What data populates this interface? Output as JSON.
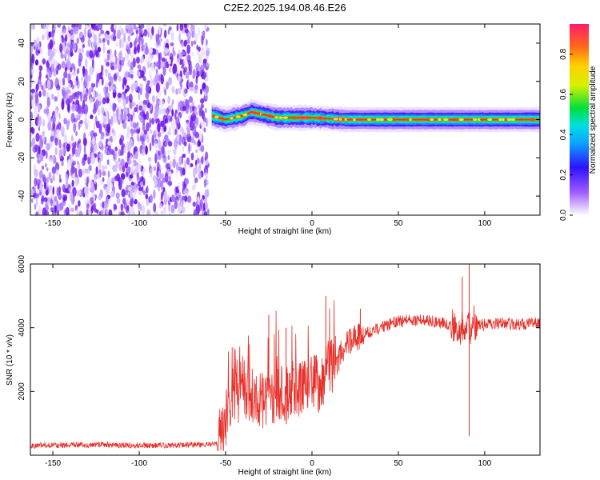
{
  "figure": {
    "title": "C2E2.2025.194.08.46.E26"
  },
  "colors": {
    "noise": "#7a1ff0",
    "trace": "#e8302a",
    "spectral_ridge": "#ff2a2a",
    "axes": "#000000"
  },
  "chart_data": [
    {
      "type": "heatmap",
      "title": "C2E2.2025.194.08.46.E26",
      "xlabel": "Height of straight line (km)",
      "ylabel": "Frequency (Hz)",
      "xlim": [
        -163,
        132
      ],
      "ylim": [
        -50,
        50
      ],
      "xticks": [
        -150,
        -100,
        -50,
        0,
        50,
        100
      ],
      "yticks": [
        -40,
        -20,
        0,
        20,
        40
      ],
      "colorbar": {
        "label": "Normalized spectral amplitude",
        "range": [
          0,
          0.95
        ],
        "ticks": [
          "0.0",
          "0.2",
          "0.4",
          "0.6",
          "0.8"
        ],
        "colormap": "rainbow (white-purple-blue-cyan-green-yellow-orange-red-magenta)"
      },
      "regions": [
        {
          "x_range": [
            -163,
            -60
          ],
          "description_level": "broadband noise, amplitude ~0.05-0.2"
        },
        {
          "x_range": [
            -60,
            132
          ],
          "center_frequency_hz": 0,
          "peak_amplitude": 0.95
        }
      ],
      "ridge_center": [
        {
          "x": -58,
          "y": 2
        },
        {
          "x": -50,
          "y": 0
        },
        {
          "x": -40,
          "y": 2
        },
        {
          "x": -35,
          "y": 4
        },
        {
          "x": -30,
          "y": 3
        },
        {
          "x": -20,
          "y": 1
        },
        {
          "x": 0,
          "y": 1
        },
        {
          "x": 20,
          "y": 0
        },
        {
          "x": 60,
          "y": 0
        },
        {
          "x": 90,
          "y": 0
        },
        {
          "x": 132,
          "y": 0
        }
      ],
      "grid": false
    },
    {
      "type": "line",
      "xlabel": "Height of straight line (km)",
      "ylabel": "SNR (10 * v/v)",
      "xlim": [
        -163,
        132
      ],
      "ylim": [
        0,
        6000
      ],
      "xticks": [
        -150,
        -100,
        -50,
        0,
        50,
        100
      ],
      "yticks": [
        2000,
        4000,
        6000
      ],
      "series": [
        {
          "x": [
            -163,
            -140,
            -120,
            -100,
            -80,
            -60,
            -55,
            -52,
            -50,
            -45,
            -40,
            -35,
            -30,
            -25,
            -20,
            -15,
            -10,
            -5,
            0,
            5,
            10,
            15,
            20,
            25,
            30,
            40,
            50,
            60,
            70,
            80,
            88,
            90,
            92,
            94,
            96,
            100,
            110,
            120,
            132
          ],
          "values": [
            300,
            320,
            330,
            300,
            310,
            340,
            350,
            700,
            1200,
            1800,
            2100,
            1900,
            1700,
            1800,
            2000,
            1900,
            2100,
            2200,
            2400,
            2100,
            2800,
            3000,
            3500,
            3700,
            3800,
            4000,
            4200,
            4250,
            4200,
            4100,
            3900,
            4300,
            4000,
            4200,
            4100,
            4100,
            4150,
            4100,
            4150
          ],
          "spikes": [
            {
              "x": -25,
              "y": 4400
            },
            {
              "x": -15,
              "y": 4000
            },
            {
              "x": 8,
              "y": 5000
            },
            {
              "x": 28,
              "y": 4600
            },
            {
              "x": 87,
              "y": 5600
            },
            {
              "x": 91,
              "y": 6100
            },
            {
              "x": 91,
              "y": 600
            }
          ]
        }
      ],
      "grid": false
    }
  ]
}
